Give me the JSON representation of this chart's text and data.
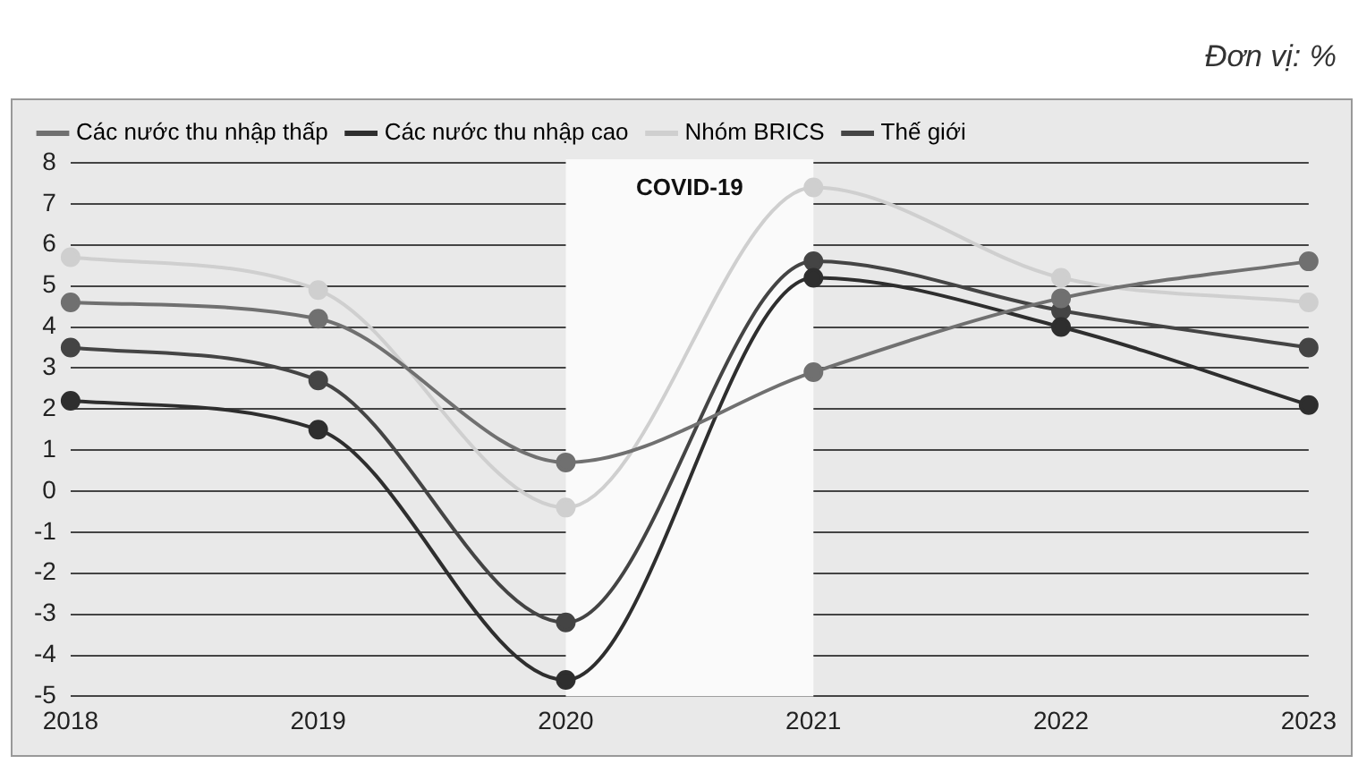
{
  "chart_data": {
    "type": "line",
    "categories": [
      "2018",
      "2019",
      "2020",
      "2021",
      "2022",
      "2023"
    ],
    "series": [
      {
        "name": "Các nước thu nhập thấp",
        "color": "#707070",
        "values": [
          4.6,
          4.2,
          0.7,
          2.9,
          4.7,
          5.6
        ]
      },
      {
        "name": "Các nước thu nhập cao",
        "color": "#2e2e2e",
        "values": [
          2.2,
          1.5,
          -4.6,
          5.2,
          4.0,
          2.1
        ]
      },
      {
        "name": "Nhóm BRICS",
        "color": "#cfcfcf",
        "values": [
          5.7,
          4.9,
          -0.4,
          7.4,
          5.2,
          4.6
        ]
      },
      {
        "name": "Thế giới",
        "color": "#444444",
        "values": [
          3.5,
          2.7,
          -3.2,
          5.6,
          4.4,
          3.5
        ]
      }
    ],
    "ylim": [
      -5,
      8
    ],
    "yticks": [
      -5,
      -4,
      -3,
      -2,
      -1,
      0,
      1,
      2,
      3,
      4,
      5,
      6,
      7,
      8
    ],
    "bands": [
      {
        "axis": "x",
        "from": "2020",
        "to": "2021",
        "label": "COVID-19",
        "color": "#fafafa"
      }
    ],
    "annotations": [
      "Đơn vị: %"
    ],
    "grid": "y",
    "legend": "top left",
    "marker": "circle",
    "line_style": "solid"
  }
}
